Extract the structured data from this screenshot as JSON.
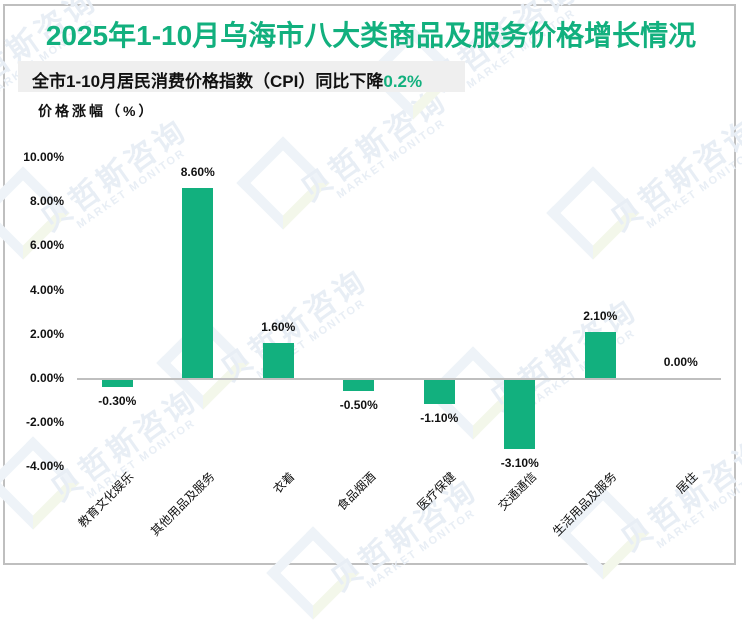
{
  "header": {
    "title": "2025年1-10月乌海市八大类商品及服务价格增长情况",
    "subtitle_prefix": "全市1-10月居民消费价格指数（CPI）同比下降",
    "subtitle_highlight": "0.2%",
    "y_axis_unit_label": "价格涨幅（%）"
  },
  "watermark": {
    "cn": "贝哲斯咨询",
    "en": "MARKET MONITOR"
  },
  "colors": {
    "accent": "#12b07e",
    "bar": "#12b07e",
    "axis": "#bfbfbf",
    "subtitle_bg": "#efefef"
  },
  "chart_data": {
    "type": "bar",
    "title": "2025年1-10月乌海市八大类商品及服务价格增长情况",
    "subtitle": "全市1-10月居民消费价格指数（CPI）同比下降0.2%",
    "xlabel": "",
    "ylabel": "价格涨幅（%）",
    "categories": [
      "教育文化娱乐",
      "其他用品及服务",
      "衣着",
      "食品烟酒",
      "医疗保健",
      "交通通信",
      "生活用品及服务",
      "居住"
    ],
    "values": [
      -0.3,
      8.6,
      1.6,
      -0.5,
      -1.1,
      -3.1,
      2.1,
      0.0
    ],
    "value_labels": [
      "-0.30%",
      "8.60%",
      "1.60%",
      "-0.50%",
      "-1.10%",
      "-3.10%",
      "2.10%",
      "0.00%"
    ],
    "ylim": [
      -4,
      10
    ],
    "yticks": [
      10,
      8,
      6,
      4,
      2,
      0,
      -2,
      -4
    ],
    "ytick_labels": [
      "10.00%",
      "8.00%",
      "6.00%",
      "4.00%",
      "2.00%",
      "0.00%",
      "-2.00%",
      "-4.00%"
    ],
    "grid": false,
    "legend": "none"
  }
}
